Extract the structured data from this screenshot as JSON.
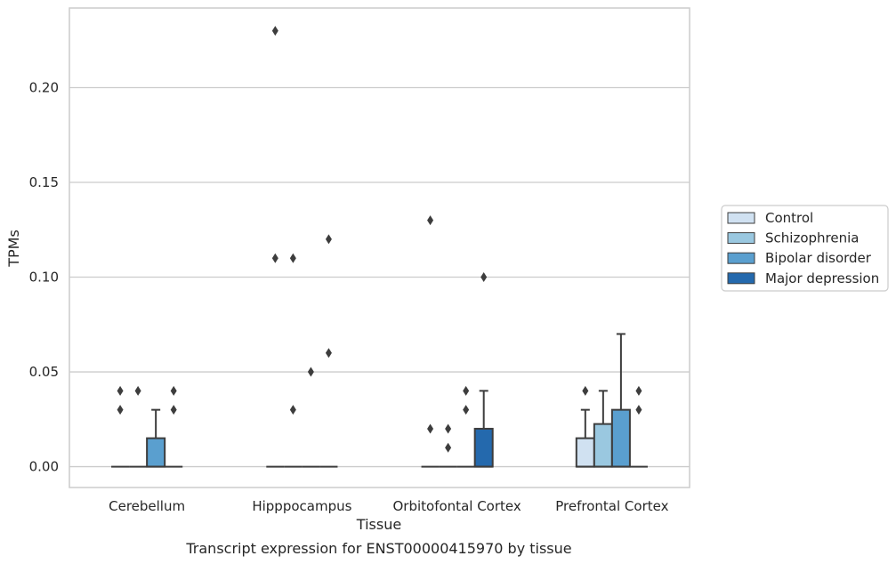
{
  "chart_data": {
    "type": "boxplot",
    "title": "",
    "caption": "Transcript expression for ENST00000415970 by tissue",
    "xlabel": "Tissue",
    "ylabel": "TPMs",
    "ylim": [
      -0.011,
      0.242
    ],
    "yticks": [
      0.0,
      0.05,
      0.1,
      0.15,
      0.2
    ],
    "ytick_labels": [
      "0.00",
      "0.05",
      "0.10",
      "0.15",
      "0.20"
    ],
    "grid": "horizontal",
    "legend_position": "right-outside",
    "categories": [
      "Cerebellum",
      "Hipppocampus",
      "Orbitofontal Cortex",
      "Prefrontal Cortex"
    ],
    "series": [
      {
        "name": "Control",
        "color": "#d0e1f1",
        "boxes": [
          {
            "q1": 0,
            "median": 0,
            "q3": 0,
            "whislo": 0,
            "whishi": 0,
            "fliers": [
              0.03,
              0.04
            ]
          },
          {
            "q1": 0,
            "median": 0,
            "q3": 0,
            "whislo": 0,
            "whishi": 0,
            "fliers": [
              0.11,
              0.23
            ]
          },
          {
            "q1": 0,
            "median": 0,
            "q3": 0,
            "whislo": 0,
            "whishi": 0,
            "fliers": [
              0.02,
              0.13
            ]
          },
          {
            "q1": 0,
            "median": 0,
            "q3": 0.015,
            "whislo": 0,
            "whishi": 0.03,
            "fliers": [
              0.04
            ]
          }
        ]
      },
      {
        "name": "Schizophrenia",
        "color": "#9ac8e0",
        "boxes": [
          {
            "q1": 0,
            "median": 0,
            "q3": 0,
            "whislo": 0,
            "whishi": 0,
            "fliers": [
              0.04
            ]
          },
          {
            "q1": 0,
            "median": 0,
            "q3": 0,
            "whislo": 0,
            "whishi": 0,
            "fliers": [
              0.03,
              0.11
            ]
          },
          {
            "q1": 0,
            "median": 0,
            "q3": 0,
            "whislo": 0,
            "whishi": 0,
            "fliers": [
              0.01,
              0.02
            ]
          },
          {
            "q1": 0,
            "median": 0,
            "q3": 0.0225,
            "whislo": 0,
            "whishi": 0.04,
            "fliers": []
          }
        ]
      },
      {
        "name": "Bipolar disorder",
        "color": "#5a9fcf",
        "boxes": [
          {
            "q1": 0,
            "median": 0,
            "q3": 0.015,
            "whislo": 0,
            "whishi": 0.03,
            "fliers": []
          },
          {
            "q1": 0,
            "median": 0,
            "q3": 0,
            "whislo": 0,
            "whishi": 0,
            "fliers": [
              0.05
            ]
          },
          {
            "q1": 0,
            "median": 0,
            "q3": 0,
            "whislo": 0,
            "whishi": 0,
            "fliers": [
              0.03,
              0.04
            ]
          },
          {
            "q1": 0,
            "median": 0,
            "q3": 0.03,
            "whislo": 0,
            "whishi": 0.07,
            "fliers": []
          }
        ]
      },
      {
        "name": "Major depression",
        "color": "#2469ad",
        "boxes": [
          {
            "q1": 0,
            "median": 0,
            "q3": 0,
            "whislo": 0,
            "whishi": 0,
            "fliers": [
              0.03,
              0.04
            ]
          },
          {
            "q1": 0,
            "median": 0,
            "q3": 0,
            "whislo": 0,
            "whishi": 0,
            "fliers": [
              0.06,
              0.12
            ]
          },
          {
            "q1": 0,
            "median": 0,
            "q3": 0.02,
            "whislo": 0,
            "whishi": 0.04,
            "fliers": [
              0.1
            ]
          },
          {
            "q1": 0,
            "median": 0,
            "q3": 0,
            "whislo": 0,
            "whishi": 0,
            "fliers": [
              0.03,
              0.04
            ]
          }
        ]
      }
    ]
  }
}
